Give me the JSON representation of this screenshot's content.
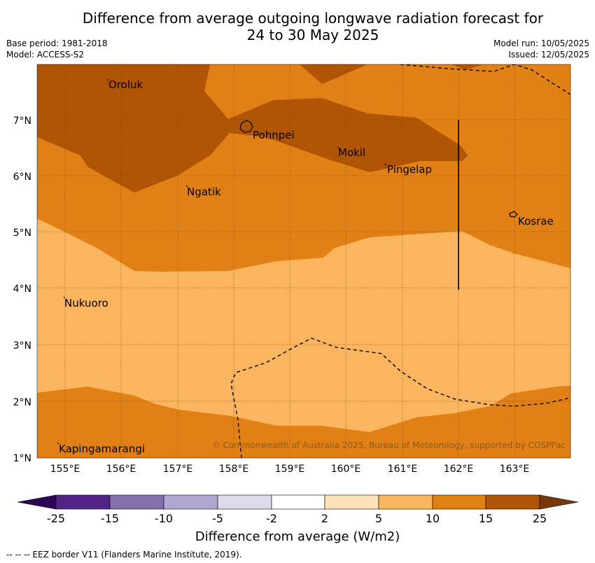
{
  "title_line1": "Difference from average outgoing longwave radiation forecast for",
  "title_line2": "24 to 30 May 2025",
  "meta": {
    "base_period": "Base period: 1981-2018",
    "model": "Model: ACCESS-S2",
    "model_run": "Model run: 10/05/2025",
    "issued": "Issued: 12/05/2025"
  },
  "map": {
    "lon_range": [
      154.5,
      164.0
    ],
    "lat_range": [
      1.0,
      8.0
    ],
    "lon_ticks": [
      "155°E",
      "156°E",
      "157°E",
      "158°E",
      "159°E",
      "160°E",
      "161°E",
      "162°E",
      "163°E"
    ],
    "lat_ticks": [
      "1°N",
      "2°N",
      "3°N",
      "4°N",
      "5°N",
      "6°N",
      "7°N"
    ],
    "places": [
      {
        "name": "Oroluk",
        "lon": 155.75,
        "lat": 7.65
      },
      {
        "name": "Pohnpei",
        "lon": 158.3,
        "lat": 6.85
      },
      {
        "name": "Mokil",
        "lon": 159.8,
        "lat": 6.68
      },
      {
        "name": "Pingelap",
        "lon": 160.7,
        "lat": 6.22
      },
      {
        "name": "Ngatik",
        "lon": 157.15,
        "lat": 5.8
      },
      {
        "name": "Kosrae",
        "lon": 163.0,
        "lat": 5.32
      },
      {
        "name": "Nukuoro",
        "lon": 154.95,
        "lat": 3.85
      },
      {
        "name": "Kapingamarangi",
        "lon": 154.8,
        "lat": 1.25
      }
    ],
    "copyright": "© Commonwealth of Australia 2025, Bureau of Meteorology, supported by COSPPac",
    "colors": {
      "band_5_10": "#fbb55e",
      "band_10_15": "#e08015",
      "band_15_25": "#b05406",
      "grid": "#5a3a1a"
    }
  },
  "colorbar": {
    "labels": [
      "-25",
      "-15",
      "-10",
      "-5",
      "-2",
      "2",
      "5",
      "10",
      "15",
      "25"
    ],
    "colors": [
      "#522487",
      "#8371ad",
      "#b1a8d1",
      "#dbdbec",
      "#ffffff",
      "#fee1b8",
      "#fbb55e",
      "#e08015",
      "#b05406"
    ],
    "low_extend_color": "#2d0557",
    "high_extend_color": "#7a3808",
    "label": "Difference from average (W/m2)"
  },
  "footer": "--  --  -- EEZ border V11 (Flanders Marine Institute, 2019)."
}
